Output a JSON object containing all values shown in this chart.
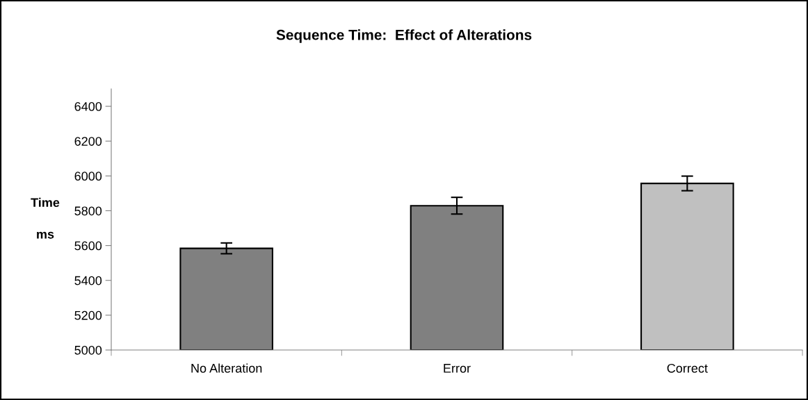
{
  "chart_data": {
    "type": "bar",
    "title": "Sequence Time:  Effect of Alterations",
    "ylabel": "Time\nms",
    "categories": [
      "No Alteration",
      "Error",
      "Correct"
    ],
    "values": [
      5584,
      5829,
      5957
    ],
    "errors": [
      31,
      48,
      42
    ],
    "colors": [
      "#808080",
      "#808080",
      "#c0c0c0"
    ],
    "ylim": [
      5000,
      6500
    ],
    "yticks": [
      5000,
      5200,
      5400,
      5600,
      5800,
      6000,
      6200,
      6400
    ],
    "grid": false,
    "legend": false
  }
}
